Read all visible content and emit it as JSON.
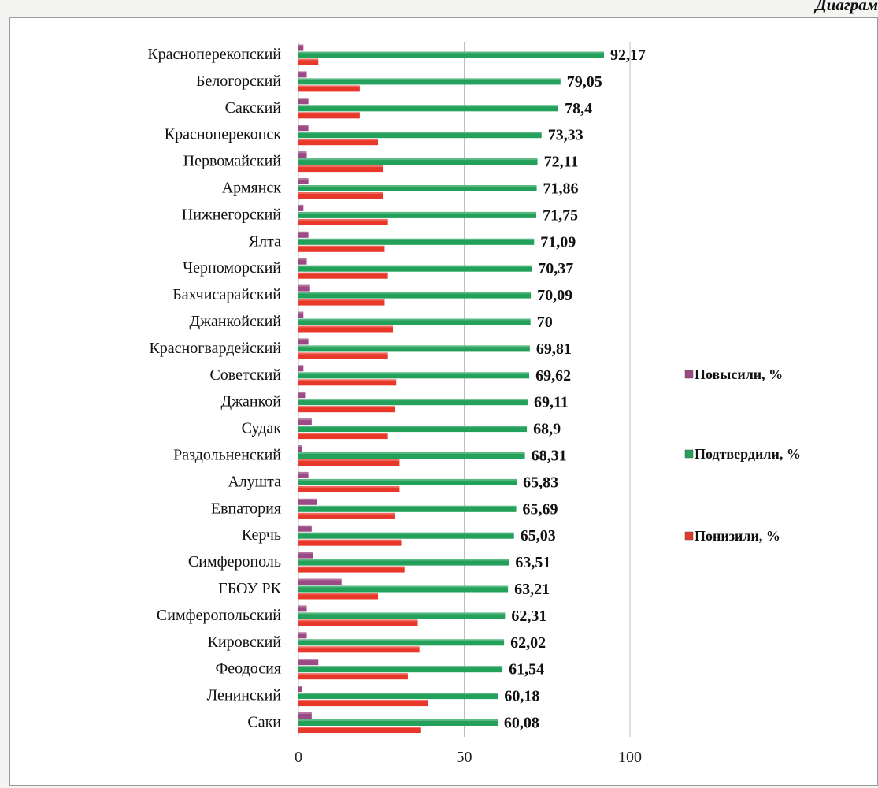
{
  "page_header": "Диаграм",
  "chart_data": {
    "type": "bar",
    "orientation": "horizontal",
    "title": "",
    "xlabel": "",
    "ylabel": "",
    "xlim": [
      0,
      100
    ],
    "x_ticks": [
      0,
      50,
      100
    ],
    "grid": true,
    "legend_position": "right",
    "categories": [
      "Красноперекопский",
      "Белогорский",
      "Сакский",
      "Красноперекопск",
      "Первомайский",
      "Армянск",
      "Нижнегорский",
      "Ялта",
      "Черноморский",
      "Бахчисарайский",
      "Джанкойский",
      "Красногвардейский",
      "Советский",
      "Джанкой",
      "Судак",
      "Раздольненский",
      "Алушта",
      "Евпатория",
      "Керчь",
      "Симферополь",
      "ГБОУ РК",
      "Симферопольский",
      "Кировский",
      "Феодосия",
      "Ленинский",
      "Саки"
    ],
    "series": [
      {
        "name": "Повысили, %",
        "color": "#9b4a86",
        "values": [
          1.5,
          2.5,
          3,
          3,
          2.5,
          3,
          1.5,
          3,
          2.5,
          3.5,
          1.5,
          3,
          1.5,
          2,
          4,
          1,
          3,
          5.5,
          4,
          4.5,
          13,
          2.5,
          2.5,
          6,
          1,
          4
        ]
      },
      {
        "name": "Подтвердили, %",
        "color": "#23a05a",
        "values": [
          92.17,
          79.05,
          78.4,
          73.33,
          72.11,
          71.86,
          71.75,
          71.09,
          70.37,
          70.09,
          70,
          69.81,
          69.62,
          69.11,
          68.9,
          68.31,
          65.83,
          65.69,
          65.03,
          63.51,
          63.21,
          62.31,
          62.02,
          61.54,
          60.18,
          60.08
        ]
      },
      {
        "name": "Понизили, %",
        "color": "#e8382a",
        "values": [
          6,
          18.5,
          18.5,
          24,
          25.5,
          25.5,
          27,
          26,
          27,
          26,
          28.5,
          27,
          29.5,
          29,
          27,
          30.5,
          30.5,
          29,
          31,
          32,
          24,
          36,
          36.5,
          33,
          39,
          37
        ]
      }
    ],
    "data_labels": [
      "92,17",
      "79,05",
      "78,4",
      "73,33",
      "72,11",
      "71,86",
      "71,75",
      "71,09",
      "70,37",
      "70,09",
      "70",
      "69,81",
      "69,62",
      "69,11",
      "68,9",
      "68,31",
      "65,83",
      "65,69",
      "65,03",
      "63,51",
      "63,21",
      "62,31",
      "62,02",
      "61,54",
      "60,18",
      "60,08"
    ]
  }
}
